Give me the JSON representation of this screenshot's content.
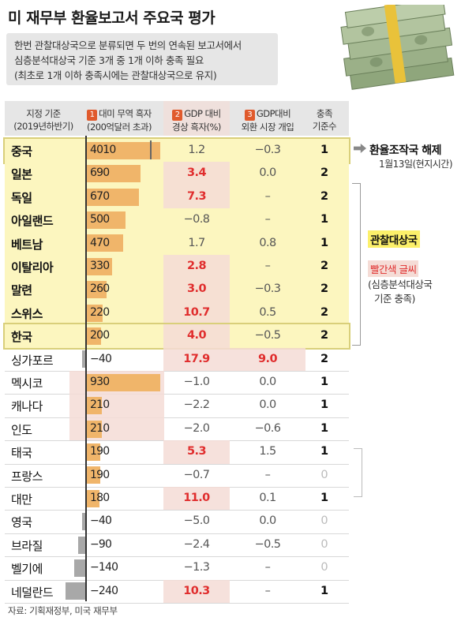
{
  "title": "미 재무부 환율보고서 주요국 평가",
  "subtitle_lines": [
    "한번 관찰대상국으로 분류되면 두 번의 연속된 보고서에서",
    "심층분석대상국 기준 3개 중 1개 이하 충족 필요",
    "(최초로 1개 이하 충족시에는 관찰대상국으로 유지)"
  ],
  "headers": {
    "country_l1": "지정 기준",
    "country_l2": "(2019년하반기)",
    "trade_num": "1",
    "trade_l1": "대미 무역 흑자",
    "trade_l2": "(200억달러 초과)",
    "current_num": "2",
    "current_l1": "GDP 대비",
    "current_l2": "경상 흑자(%)",
    "fx_num": "3",
    "fx_l1": "GDP대비",
    "fx_l2": "외환 시장 개입",
    "count_l1": "충족",
    "count_l2": "기준수"
  },
  "chart_data": {
    "type": "table",
    "columns": [
      "지정 기준",
      "대미 무역 흑자",
      "GDP 대비 경상 흑자(%)",
      "GDP대비 외환 시장 개입",
      "충족 기준수"
    ],
    "rows": [
      {
        "country": "중국",
        "trade": 4010,
        "trade_label": "4010",
        "current": "1.2",
        "fx": "−0.3",
        "count": "1",
        "group": "yellow",
        "boxed": true
      },
      {
        "country": "일본",
        "trade": 690,
        "trade_label": "690",
        "current": "3.4",
        "fx": "0.0",
        "count": "2",
        "group": "yellow",
        "current_red": true
      },
      {
        "country": "독일",
        "trade": 670,
        "trade_label": "670",
        "current": "7.3",
        "fx": "–",
        "count": "2",
        "group": "yellow",
        "current_red": true
      },
      {
        "country": "아일랜드",
        "trade": 500,
        "trade_label": "500",
        "current": "−0.8",
        "fx": "–",
        "count": "1",
        "group": "yellow"
      },
      {
        "country": "베트남",
        "trade": 470,
        "trade_label": "470",
        "current": "1.7",
        "fx": "0.8",
        "count": "1",
        "group": "yellow"
      },
      {
        "country": "이탈리아",
        "trade": 330,
        "trade_label": "330",
        "current": "2.8",
        "fx": "–",
        "count": "2",
        "group": "yellow",
        "current_red": true
      },
      {
        "country": "말련",
        "trade": 260,
        "trade_label": "260",
        "current": "3.0",
        "fx": "−0.3",
        "count": "2",
        "group": "yellow",
        "current_red": true
      },
      {
        "country": "스위스",
        "trade": 220,
        "trade_label": "220",
        "current": "10.7",
        "fx": "0.5",
        "count": "2",
        "group": "yellow",
        "current_red": true
      },
      {
        "country": "한국",
        "trade": 200,
        "trade_label": "200",
        "current": "4.0",
        "fx": "−0.5",
        "count": "2",
        "group": "yellow",
        "boxed": true,
        "current_red": true
      },
      {
        "country": "싱가포르",
        "trade": -40,
        "trade_label": "−40",
        "current": "17.9",
        "fx": "9.0",
        "count": "2",
        "current_red": true,
        "fx_red": true
      },
      {
        "country": "멕시코",
        "trade": 930,
        "trade_label": "930",
        "current": "−1.0",
        "fx": "0.0",
        "count": "1"
      },
      {
        "country": "캐나다",
        "trade": 210,
        "trade_label": "210",
        "current": "−2.2",
        "fx": "0.0",
        "count": "1"
      },
      {
        "country": "인도",
        "trade": 210,
        "trade_label": "210",
        "current": "−2.0",
        "fx": "−0.6",
        "count": "1"
      },
      {
        "country": "태국",
        "trade": 190,
        "trade_label": "190",
        "current": "5.3",
        "fx": "1.5",
        "count": "1",
        "current_red": true
      },
      {
        "country": "프랑스",
        "trade": 190,
        "trade_label": "190",
        "current": "−0.7",
        "fx": "–",
        "count": "0"
      },
      {
        "country": "대만",
        "trade": 180,
        "trade_label": "180",
        "current": "11.0",
        "fx": "0.1",
        "count": "1",
        "current_red": true
      },
      {
        "country": "영국",
        "trade": -40,
        "trade_label": "−40",
        "current": "−5.0",
        "fx": "0.0",
        "count": "0"
      },
      {
        "country": "브라질",
        "trade": -90,
        "trade_label": "−90",
        "current": "−2.4",
        "fx": "−0.5",
        "count": "0"
      },
      {
        "country": "벨기에",
        "trade": -140,
        "trade_label": "−140",
        "current": "−1.3",
        "fx": "–",
        "count": "0"
      },
      {
        "country": "네덜란드",
        "trade": -240,
        "trade_label": "−240",
        "current": "10.3",
        "fx": "–",
        "count": "1",
        "current_red": true
      }
    ]
  },
  "side": {
    "china_arrow_l1": "환율조작국 해제",
    "china_arrow_l2": "1월13일(현지시간)",
    "watch_label": "관찰대상국",
    "red_label": "빨간색 글씨",
    "red_note_l1": "(심층분석대상국",
    "red_note_l2": "기준 충족)"
  },
  "source": "자료: 기획재정부, 미국 재무부",
  "colors": {
    "yellow_row": "#fcf6bf",
    "pink_column": "#f5dcd6",
    "positive_bar": "#f0b56a",
    "negative_bar": "#a8a8a8",
    "red_text": "#e02d2d",
    "accent_number": "#e05a2c"
  }
}
